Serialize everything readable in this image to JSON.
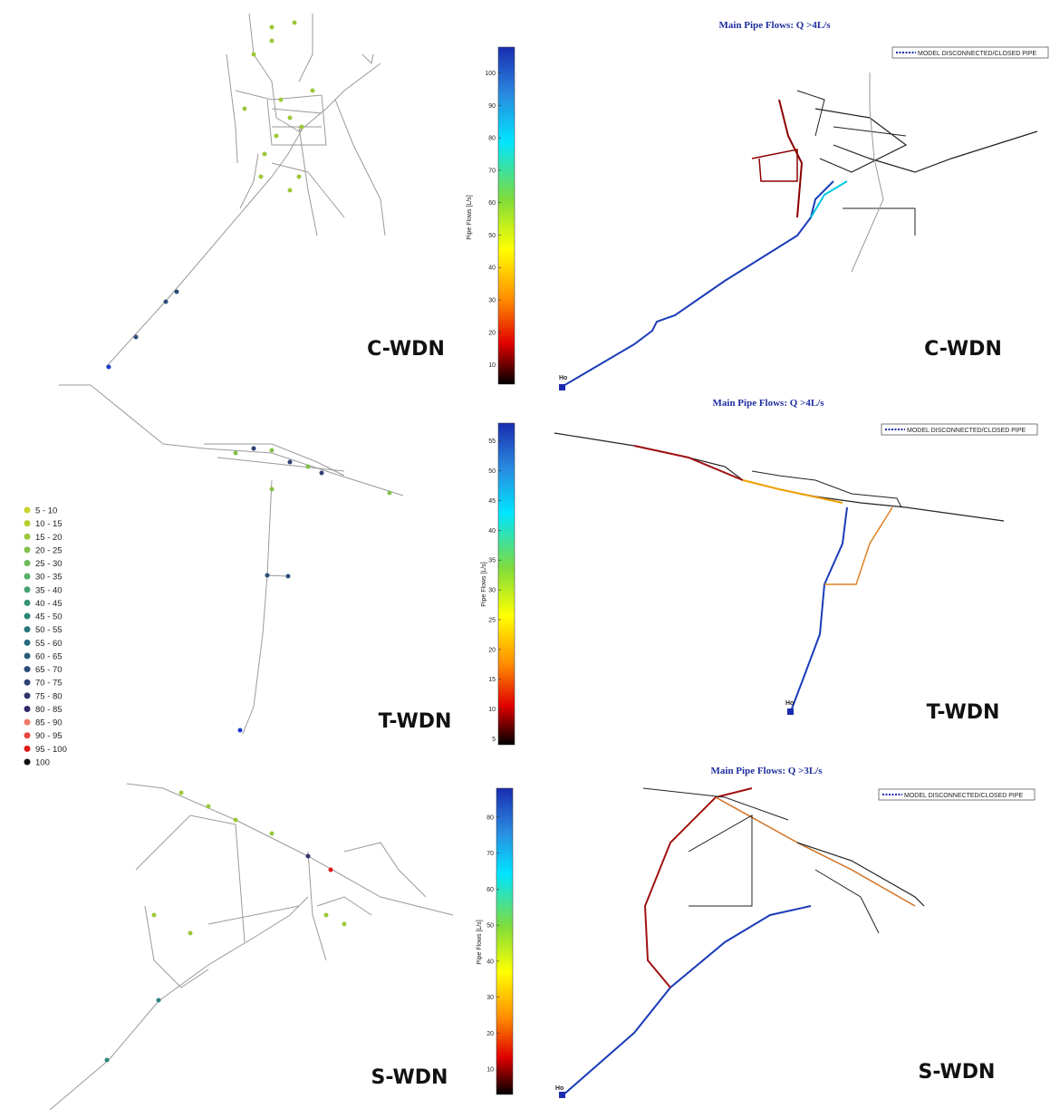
{
  "rows": [
    {
      "left_label": "C-WDN",
      "right_title": "Main Pipe Flows: Q >4L/s",
      "right_legend": "MODEL DISCONNECTED/CLOSED PIPE",
      "right_label": "C-WDN",
      "source_label": "Ho",
      "colorbar": {
        "label": "Pipe Flows [L/s]",
        "range": [
          4,
          108
        ],
        "ticks": [
          10,
          20,
          30,
          40,
          50,
          60,
          70,
          80,
          90,
          100
        ]
      }
    },
    {
      "left_label": "T-WDN",
      "right_title": "Main Pipe Flows: Q >4L/s",
      "right_legend": "MODEL DISCONNECTED/CLOSED PIPE",
      "right_label": "T-WDN",
      "source_label": "Ho",
      "colorbar": {
        "label": "Pipe Flows [L/s]",
        "range": [
          4,
          58
        ],
        "ticks": [
          5,
          10,
          15,
          20,
          25,
          30,
          35,
          40,
          45,
          50,
          55
        ]
      }
    },
    {
      "left_label": "S-WDN",
      "right_title": "Main Pipe Flows: Q >3L/s",
      "right_legend": "MODEL DISCONNECTED/CLOSED PIPE",
      "right_label": "S-WDN",
      "source_label": "Ho",
      "colorbar": {
        "label": "Pipe Flows [L/s]",
        "range": [
          3,
          88
        ],
        "ticks": [
          10,
          20,
          30,
          40,
          50,
          60,
          70,
          80
        ]
      }
    }
  ],
  "legend": [
    {
      "label": "5 - 10",
      "color": "#c9d430"
    },
    {
      "label": "10 - 15",
      "color": "#b3cf2f"
    },
    {
      "label": "15 - 20",
      "color": "#9cc83a"
    },
    {
      "label": "20 - 25",
      "color": "#84c04a"
    },
    {
      "label": "25 - 30",
      "color": "#6cb85a"
    },
    {
      "label": "30 - 35",
      "color": "#56ad68"
    },
    {
      "label": "35 - 40",
      "color": "#44a171"
    },
    {
      "label": "40 - 45",
      "color": "#349477"
    },
    {
      "label": "45 - 50",
      "color": "#2a867a"
    },
    {
      "label": "50 - 55",
      "color": "#27787c"
    },
    {
      "label": "55 - 60",
      "color": "#266a7c"
    },
    {
      "label": "60 - 65",
      "color": "#285c7b"
    },
    {
      "label": "65 - 70",
      "color": "#2b4e78"
    },
    {
      "label": "70 - 75",
      "color": "#2e4174"
    },
    {
      "label": "75 - 80",
      "color": "#30336e"
    },
    {
      "label": "80 - 85",
      "color": "#302766"
    },
    {
      "label": "85 - 90",
      "color": "#f07a6a"
    },
    {
      "label": "90 - 95",
      "color": "#e8453c"
    },
    {
      "label": "95 - 100",
      "color": "#e01818"
    },
    {
      "label": "100",
      "color": "#111111"
    }
  ]
}
